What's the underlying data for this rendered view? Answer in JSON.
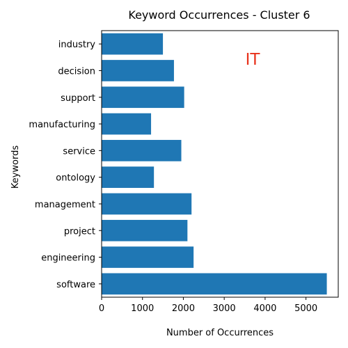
{
  "chart_data": {
    "type": "bar",
    "orientation": "horizontal",
    "title": "Keyword Occurrences - Cluster 6",
    "xlabel": "Number of Occurrences",
    "ylabel": "Keywords",
    "categories": [
      "software",
      "engineering",
      "project",
      "management",
      "ontology",
      "service",
      "manufacturing",
      "support",
      "decision",
      "industry"
    ],
    "values": [
      5510,
      2250,
      2100,
      2200,
      1280,
      1950,
      1210,
      2020,
      1770,
      1500
    ],
    "xlim": [
      0,
      5790
    ],
    "xticks": [
      0,
      1000,
      2000,
      3000,
      4000,
      5000
    ],
    "grid": false,
    "bar_color": "#1f77b4",
    "annotation": {
      "text": "IT",
      "color": "#e8311a"
    }
  }
}
